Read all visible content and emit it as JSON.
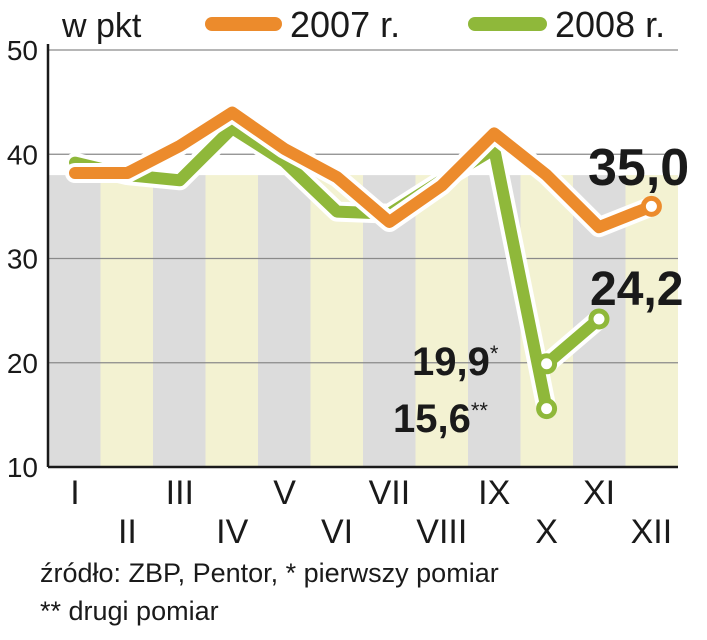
{
  "chart_data": {
    "type": "line",
    "unit_label": "w pkt",
    "categories": [
      "I",
      "II",
      "III",
      "IV",
      "V",
      "VI",
      "VII",
      "VIII",
      "IX",
      "X",
      "XI",
      "XII"
    ],
    "ylim": [
      10,
      50
    ],
    "yticks": [
      10,
      20,
      30,
      40,
      50
    ],
    "grid": true,
    "legend_position": "top",
    "series": [
      {
        "name": "2007 r.",
        "color": "#ec8b2c",
        "values": [
          38.2,
          38.2,
          40.8,
          44.0,
          40.5,
          37.8,
          33.5,
          37.0,
          42.0,
          38.0,
          33.0,
          35.0
        ]
      },
      {
        "name": "2008 r.",
        "color": "#8fb83a",
        "values": [
          39.2,
          38.0,
          37.5,
          42.5,
          39.3,
          34.5,
          34.3,
          37.5,
          40.5,
          15.6,
          null,
          null
        ],
        "extra_points": [
          {
            "category": "X",
            "value": 19.9,
            "label": "19,9",
            "marker": "*"
          },
          {
            "category": "XI",
            "value": 24.2,
            "label": "24,2"
          }
        ],
        "continuation": [
          "X",
          "XI"
        ]
      }
    ],
    "annotations": [
      {
        "category": "XII",
        "series": "2007 r.",
        "value": 35.0,
        "label": "35,0"
      },
      {
        "category": "X",
        "series": "2008 r.",
        "value": 15.6,
        "label": "15,6",
        "marker": "**"
      }
    ],
    "band_colors": {
      "odd": "#dcdcdc",
      "even": "#f3f2d2"
    }
  },
  "source": {
    "line1": "źródło: ZBP, Pentor, * pierwszy pomiar",
    "line2": "** drugi pomiar"
  }
}
